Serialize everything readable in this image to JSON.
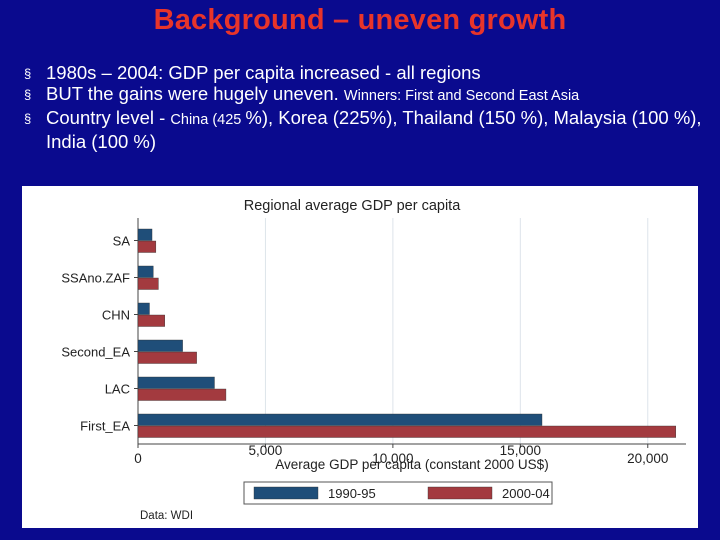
{
  "slide": {
    "title": "Background – uneven growth",
    "bullets": [
      {
        "text": "1980s – 2004:  GDP per capita  increased - all regions"
      },
      {
        "text": "BUT the gains were hugely uneven. ",
        "small": "Winners: First and Second East Asia"
      },
      {
        "pre": "Country level - ",
        "small": "China (425 ",
        "post": "%), Korea (225%), Thailand (150 %), Malaysia (100 %), India (100 %)"
      }
    ],
    "bullet_glyph": "§"
  },
  "chart_data": {
    "type": "bar",
    "orientation": "horizontal",
    "title": "Regional average GDP per capita",
    "xlabel": "Average GDP per capita (constant 2000 US$)",
    "categories": [
      "SA",
      "SSAno.ZAF",
      "CHN",
      "Second_EA",
      "LAC",
      "First_EA"
    ],
    "series": [
      {
        "name": "1990-95",
        "color": "#1f4e79",
        "values": [
          550,
          600,
          450,
          1750,
          3000,
          15850
        ]
      },
      {
        "name": "2000-04",
        "color": "#a33a3f",
        "values": [
          700,
          800,
          1050,
          2300,
          3450,
          21100
        ]
      }
    ],
    "xlim": [
      0,
      21500
    ],
    "xticks": [
      "0",
      "5,000",
      "10,000",
      "15,000",
      "20,000"
    ],
    "xtick_values": [
      0,
      5000,
      10000,
      15000,
      20000
    ],
    "grid": true,
    "legend_position": "bottom",
    "note": "Data: WDI"
  }
}
